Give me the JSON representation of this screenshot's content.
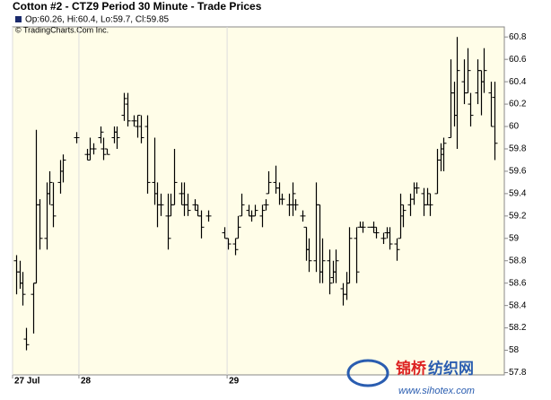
{
  "chart_data": {
    "type": "ohlc",
    "title": "Cotton #2 - CTZ9 Period 30 Minute - Trade Prices",
    "legend_text": "Op:60.26, Hi:60.4, Lo:59.7, Cl:59.85",
    "copyright": "© TradingCharts.Com Inc.",
    "watermark": [
      "锦桥",
      "纺织网",
      "www.sihotex.com"
    ],
    "color": "#000000",
    "x": [
      1,
      2,
      3,
      4,
      6,
      7,
      8,
      10,
      11,
      12,
      14,
      15,
      19,
      22,
      23,
      24,
      26,
      27,
      28,
      30,
      31,
      33,
      34,
      36,
      37,
      38,
      40,
      42,
      43,
      44,
      46,
      47,
      48,
      50,
      51,
      52,
      54,
      55,
      56,
      58,
      63,
      64,
      66,
      67,
      68,
      70,
      71,
      72,
      74,
      75,
      76,
      78,
      79,
      80,
      82,
      83,
      84,
      86,
      87,
      88,
      90,
      91,
      92,
      94,
      95,
      96,
      98,
      99,
      100,
      102,
      103,
      104,
      106,
      107,
      108,
      110,
      111,
      112,
      114,
      115,
      116,
      118,
      119,
      120,
      122,
      123,
      124,
      126,
      127,
      128,
      130,
      131,
      132,
      134,
      135,
      136,
      138,
      139,
      140,
      142,
      143
    ],
    "open": [
      58.8,
      58.7,
      58.6,
      58.1,
      58.5,
      58.6,
      59.3,
      59.0,
      59.4,
      59.3,
      59.5,
      59.6,
      59.9,
      59.75,
      59.75,
      59.8,
      59.9,
      59.8,
      59.8,
      59.9,
      59.95,
      60.1,
      60.2,
      60.05,
      60.0,
      60.0,
      60.0,
      59.5,
      59.4,
      59.3,
      59.2,
      59.2,
      59.3,
      59.4,
      59.3,
      59.3,
      59.3,
      59.25,
      59.2,
      59.2,
      59.05,
      59.0,
      58.95,
      59.0,
      59.2,
      59.25,
      59.2,
      59.2,
      59.2,
      59.3,
      59.4,
      59.5,
      59.45,
      59.35,
      59.3,
      59.3,
      59.3,
      59.2,
      59.1,
      58.9,
      58.8,
      59.3,
      58.7,
      58.8,
      58.65,
      58.7,
      58.55,
      58.5,
      58.6,
      59.0,
      59.1,
      59.1,
      59.1,
      59.1,
      59.05,
      59.0,
      59.05,
      59.05,
      58.95,
      59.0,
      59.2,
      59.3,
      59.35,
      59.45,
      59.4,
      59.3,
      59.3,
      59.4,
      59.7,
      59.75,
      59.9,
      60.3,
      60.1,
      60.4,
      60.3,
      60.2,
      60.3,
      60.5,
      60.4,
      60.3,
      60.26
    ],
    "high": [
      58.85,
      58.8,
      58.7,
      58.2,
      58.6,
      59.97,
      59.35,
      59.5,
      59.6,
      59.5,
      59.7,
      59.75,
      59.95,
      59.8,
      59.9,
      59.85,
      60.0,
      59.9,
      59.8,
      60.0,
      60.0,
      60.3,
      60.3,
      60.1,
      60.1,
      60.1,
      60.1,
      59.9,
      59.5,
      59.4,
      59.4,
      59.4,
      59.8,
      59.5,
      59.5,
      59.4,
      59.35,
      59.3,
      59.25,
      59.25,
      59.1,
      59.0,
      59.0,
      59.2,
      59.4,
      59.3,
      59.25,
      59.3,
      59.3,
      59.35,
      59.6,
      59.65,
      59.5,
      59.4,
      59.4,
      59.5,
      59.35,
      59.25,
      59.1,
      59.0,
      59.5,
      59.3,
      59.0,
      58.9,
      58.8,
      58.9,
      58.6,
      58.7,
      59.1,
      59.1,
      59.15,
      59.15,
      59.1,
      59.15,
      59.1,
      59.05,
      59.1,
      59.1,
      59.0,
      59.4,
      59.3,
      59.4,
      59.5,
      59.5,
      59.45,
      59.45,
      59.4,
      59.8,
      59.85,
      59.9,
      60.6,
      60.4,
      60.8,
      60.6,
      60.7,
      60.3,
      60.6,
      60.5,
      60.7,
      60.4,
      60.4
    ],
    "low": [
      58.5,
      58.55,
      58.4,
      58.0,
      58.15,
      58.6,
      58.9,
      58.9,
      59.3,
      59.1,
      59.4,
      59.5,
      59.85,
      59.7,
      59.7,
      59.75,
      59.85,
      59.7,
      59.75,
      59.85,
      59.8,
      60.05,
      60.0,
      60.0,
      59.9,
      59.85,
      59.4,
      59.3,
      59.1,
      59.2,
      58.9,
      59.2,
      59.3,
      59.3,
      59.2,
      59.2,
      59.25,
      59.2,
      59.0,
      59.15,
      59.0,
      58.9,
      58.85,
      59.0,
      59.2,
      59.2,
      59.15,
      59.2,
      59.1,
      59.25,
      59.4,
      59.4,
      59.3,
      59.3,
      59.2,
      59.2,
      59.25,
      59.15,
      58.8,
      58.7,
      58.7,
      58.6,
      58.6,
      58.5,
      58.6,
      58.6,
      58.4,
      58.45,
      58.6,
      58.6,
      59.1,
      59.05,
      59.1,
      59.05,
      59.0,
      58.95,
      59.0,
      58.9,
      58.8,
      59.0,
      59.1,
      59.2,
      59.3,
      59.4,
      59.2,
      59.3,
      59.2,
      59.4,
      59.6,
      59.6,
      59.9,
      60.0,
      59.8,
      60.2,
      60.3,
      60.0,
      60.2,
      60.1,
      60.3,
      60.0,
      59.7
    ],
    "close": [
      58.7,
      58.6,
      58.5,
      58.05,
      58.6,
      59.3,
      59.0,
      59.4,
      59.5,
      59.2,
      59.6,
      59.7,
      59.9,
      59.7,
      59.8,
      59.8,
      59.95,
      59.75,
      59.75,
      59.95,
      59.9,
      60.25,
      60.05,
      60.05,
      60.1,
      59.9,
      59.5,
      59.4,
      59.3,
      59.3,
      59.0,
      59.3,
      59.5,
      59.4,
      59.3,
      59.25,
      59.3,
      59.2,
      59.1,
      59.2,
      59.0,
      58.95,
      58.9,
      59.1,
      59.3,
      59.2,
      59.2,
      59.25,
      59.25,
      59.3,
      59.5,
      59.45,
      59.35,
      59.35,
      59.3,
      59.4,
      59.3,
      59.2,
      58.9,
      58.8,
      59.3,
      58.7,
      58.8,
      58.6,
      58.7,
      58.8,
      58.5,
      58.6,
      59.0,
      58.7,
      59.1,
      59.1,
      59.1,
      59.1,
      59.05,
      59.0,
      59.05,
      58.95,
      58.9,
      59.3,
      59.25,
      59.35,
      59.45,
      59.45,
      59.3,
      59.4,
      59.3,
      59.7,
      59.8,
      59.85,
      60.3,
      60.1,
      60.5,
      60.3,
      60.5,
      60.1,
      60.5,
      60.4,
      60.5,
      60.0,
      59.85
    ],
    "xlim": [
      0,
      146
    ],
    "xticks": [
      {
        "value": 0,
        "label": "27 Jul"
      },
      {
        "value": 19.7,
        "label": "28"
      },
      {
        "value": 63.7,
        "label": "29"
      }
    ],
    "ylim": [
      57.78,
      60.89
    ],
    "yticks": [
      57.8,
      58,
      58.2,
      58.4,
      58.6,
      58.8,
      59,
      59.2,
      59.4,
      59.6,
      59.8,
      60,
      60.2,
      60.4,
      60.6,
      60.8
    ]
  }
}
